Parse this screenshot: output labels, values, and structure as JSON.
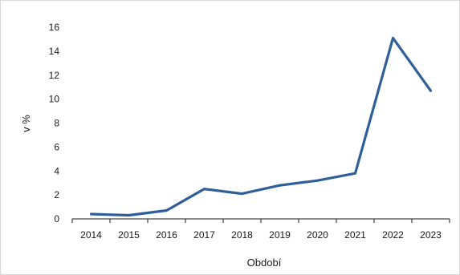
{
  "chart_data": {
    "type": "line",
    "categories": [
      "2014",
      "2015",
      "2016",
      "2017",
      "2018",
      "2019",
      "2020",
      "2021",
      "2022",
      "2023"
    ],
    "series": [
      {
        "values": [
          0.4,
          0.3,
          0.7,
          2.5,
          2.1,
          2.8,
          3.2,
          3.8,
          15.1,
          10.7
        ]
      }
    ],
    "xlabel": "Období",
    "ylabel": "v %",
    "ylim": [
      0,
      16
    ],
    "yticks": [
      0,
      2,
      4,
      6,
      8,
      10,
      12,
      14,
      16
    ],
    "line_color": "#2e5f99",
    "grid": false,
    "legend": "none"
  }
}
